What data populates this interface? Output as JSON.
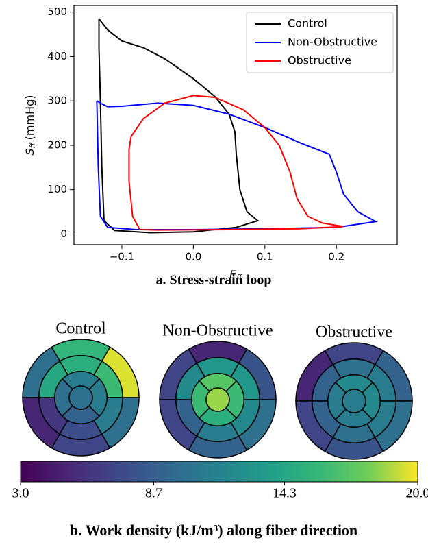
{
  "chart_data": [
    {
      "type": "line",
      "xlabel": {
        "symbol": "E",
        "subscript": "ff"
      },
      "ylabel": {
        "symbol": "S",
        "subscript": "ff",
        "text": "(mmHg)"
      },
      "caption": "a. Stress-strain loop",
      "xlim": [
        -0.167,
        0.285
      ],
      "ylim": [
        -24,
        515
      ],
      "xticks": [
        {
          "value": -0.1,
          "label": "−0.1"
        },
        {
          "value": 0,
          "label": "0.0"
        },
        {
          "value": 0.1,
          "label": "0.1"
        },
        {
          "value": 0.2,
          "label": "0.2"
        }
      ],
      "yticks": [
        0,
        100,
        200,
        300,
        400,
        500
      ],
      "legend": "upper right",
      "series": [
        {
          "name": "Control",
          "color": "#000000",
          "x": [
            -0.132,
            -0.12,
            -0.1,
            -0.07,
            -0.04,
            0,
            0.03,
            0.05,
            0.058,
            0.06,
            0.065,
            0.075,
            0.09,
            0.06,
            0.0,
            -0.06,
            -0.11,
            -0.125,
            -0.128,
            -0.13,
            -0.132,
            -0.132
          ],
          "values": [
            485,
            460,
            435,
            420,
            395,
            350,
            310,
            270,
            230,
            180,
            100,
            50,
            30,
            15,
            5,
            3,
            8,
            30,
            150,
            300,
            420,
            485
          ]
        },
        {
          "name": "Non-Obstructive",
          "color": "#0000ff",
          "x": [
            -0.135,
            -0.13,
            -0.12,
            -0.1,
            -0.05,
            0,
            0.05,
            0.1,
            0.15,
            0.19,
            0.2,
            0.21,
            0.23,
            0.255,
            0.2,
            0.1,
            0,
            -0.08,
            -0.12,
            -0.13,
            -0.133,
            -0.135
          ],
          "values": [
            300,
            295,
            287,
            288,
            295,
            290,
            270,
            240,
            205,
            180,
            140,
            90,
            50,
            28,
            15,
            12,
            10,
            10,
            15,
            40,
            150,
            300
          ]
        },
        {
          "name": "Obstructive",
          "color": "#ff0000",
          "x": [
            -0.09,
            -0.087,
            -0.07,
            -0.04,
            0,
            0.03,
            0.07,
            0.1,
            0.12,
            0.135,
            0.145,
            0.16,
            0.18,
            0.21,
            0.15,
            0.05,
            -0.05,
            -0.075,
            -0.085,
            -0.09,
            -0.09
          ],
          "values": [
            190,
            220,
            260,
            295,
            312,
            308,
            280,
            240,
            200,
            140,
            80,
            40,
            25,
            17,
            12,
            10,
            9,
            10,
            40,
            120,
            190
          ]
        }
      ]
    },
    {
      "type": "bullseye",
      "caption": "b. Work density (kJ/m³) along fiber direction",
      "colormap": "viridis",
      "clim": [
        3,
        20
      ],
      "cticks": [
        {
          "value": 3,
          "label": "3.0"
        },
        8.7,
        14.3,
        {
          "value": 20,
          "label": "20.0"
        }
      ],
      "plots": [
        {
          "title": "Control",
          "basal": [
            19.5,
            15.5,
            10,
            5,
            7,
            10
          ],
          "mid": [
            16,
            15,
            14.5,
            6,
            7.5,
            11
          ],
          "apical": [
            11,
            10,
            9,
            11
          ],
          "apex": 10
        },
        {
          "title": "Non-Obstructive",
          "basal": [
            8,
            5,
            7,
            7,
            9,
            10
          ],
          "mid": [
            13,
            13,
            12,
            9,
            11,
            12
          ],
          "apical": [
            17,
            16,
            15,
            16
          ],
          "apex": 18.5
        },
        {
          "title": "Obstructive",
          "basal": [
            9,
            7,
            5,
            7,
            8,
            10
          ],
          "mid": [
            11,
            10,
            9,
            9,
            10,
            11
          ],
          "apical": [
            12,
            11,
            11,
            12
          ],
          "apex": 11
        }
      ]
    }
  ]
}
